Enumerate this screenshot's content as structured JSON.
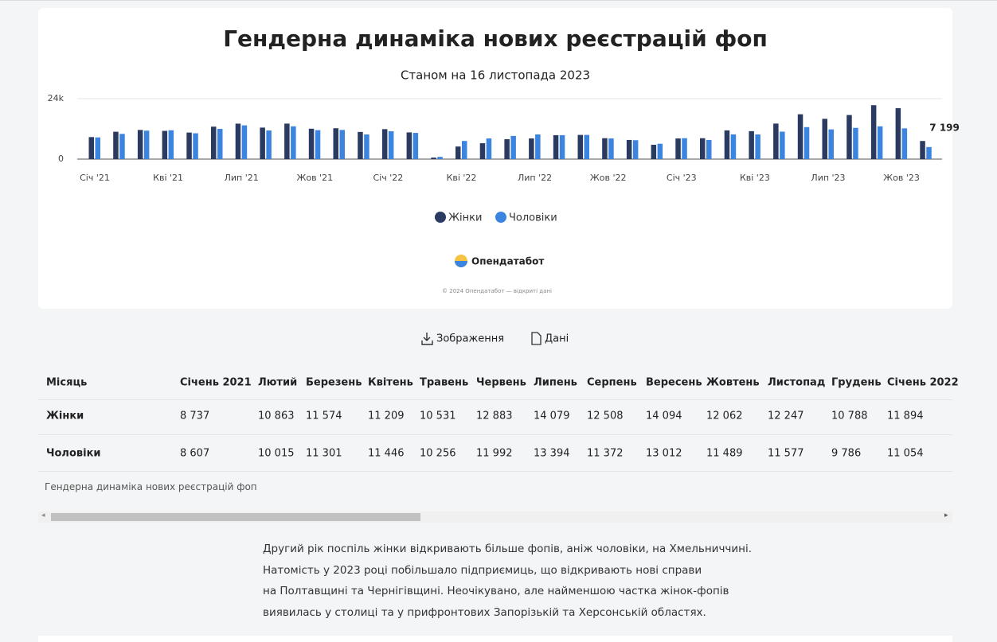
{
  "chart_data": {
    "type": "bar",
    "title": "Гендерна динаміка нових реєстрацій фоп",
    "subtitle": "Станом на 16 листопада 2023",
    "categories": [
      "Січ '21",
      null,
      null,
      "Кві '21",
      null,
      null,
      "Лип '21",
      null,
      null,
      "Жов '21",
      null,
      null,
      "Січ '22",
      null,
      null,
      "Кві '22",
      null,
      null,
      "Лип '22",
      null,
      null,
      "Жов '22",
      null,
      null,
      "Січ '23",
      null,
      null,
      "Кві '23",
      null,
      null,
      "Лип '23",
      null,
      null,
      "Жов '23",
      null
    ],
    "series": [
      {
        "name": "Жінки",
        "color": "#2a3a60",
        "values": [
          8737,
          10863,
          11574,
          11209,
          10531,
          12883,
          14079,
          12508,
          14094,
          12062,
          12247,
          10788,
          11894,
          10600,
          600,
          5000,
          6300,
          7900,
          8200,
          9500,
          9600,
          8300,
          7600,
          5700,
          8200,
          8300,
          11400,
          11100,
          14100,
          17800,
          16000,
          17500,
          21400,
          20200,
          7199
        ],
        "value_labels": [
          null,
          null,
          null,
          null,
          null,
          null,
          null,
          null,
          null,
          null,
          null,
          null,
          null,
          null,
          null,
          null,
          null,
          null,
          null,
          null,
          null,
          null,
          null,
          null,
          null,
          null,
          null,
          null,
          null,
          null,
          null,
          null,
          null,
          null,
          "7 199"
        ]
      },
      {
        "name": "Чоловіки",
        "color": "#3b84e0",
        "values": [
          8607,
          10015,
          11301,
          11446,
          10256,
          11992,
          13394,
          11372,
          13012,
          11489,
          11577,
          9786,
          11054,
          10400,
          900,
          7200,
          8200,
          9200,
          9800,
          9500,
          9600,
          8200,
          7500,
          6100,
          8300,
          7600,
          9800,
          9800,
          10900,
          12700,
          11800,
          12400,
          13000,
          12200,
          4800
        ]
      }
    ],
    "ylim": [
      0,
      24000
    ],
    "yticks": [
      0,
      {
        "value": 24000,
        "label": "24k"
      }
    ],
    "grid": true,
    "legend": "bottom"
  },
  "branding": {
    "logo": "Опендатабот",
    "copyright": "© 2024 Опендатабот — відкриті дані"
  },
  "buttons": [
    "Зображення",
    "Дані"
  ],
  "table": {
    "header": [
      "Місяць",
      "Січень 2021",
      "Лютий",
      "Березень",
      "Квітень",
      "Травень",
      "Червень",
      "Липень",
      "Серпень",
      "Вересень",
      "Жовтень",
      "Листопад",
      "Грудень",
      "Січень 2022"
    ],
    "rows": [
      [
        "Жінки",
        "8 737",
        "10 863",
        "11 574",
        "11 209",
        "10 531",
        "12 883",
        "14 079",
        "12 508",
        "14 094",
        "12 062",
        "12 247",
        "10 788",
        "11 894"
      ],
      [
        "Чоловіки",
        "8 607",
        "10 015",
        "11 301",
        "11 446",
        "10 256",
        "11 992",
        "13 394",
        "11 372",
        "13 012",
        "11 489",
        "11 577",
        "9 786",
        "11 054"
      ]
    ],
    "caption": "Гендерна динаміка нових реєстрацій фоп"
  },
  "paragraph": [
    "Другий рік поспіль жінки відкривають більше фопів, аніж чоловіки, на Хмельниччині.",
    "Натомість у 2023 році побільшало підприємиць, що відкривають нові справи",
    "на Полтавщині та Чернігівщині. Неочікувано, але найменшою частка жінок-фопів",
    "виявилась у столиці та у прифронтових Запорізькій та Херсонській областях."
  ]
}
